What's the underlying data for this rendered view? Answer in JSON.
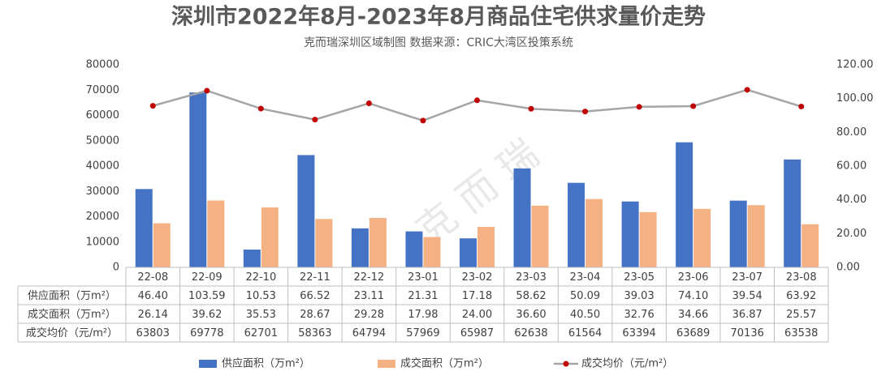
{
  "chart_data": {
    "type": "bar-line",
    "title": "深圳市2022年8月-2023年8月商品住宅供求量价走势",
    "subtitle": "克而瑞深圳区域制图        数据来源：CRIC大湾区投策系统",
    "watermark": "克 而 瑞",
    "categories": [
      "22-08",
      "22-09",
      "22-10",
      "22-11",
      "22-12",
      "23-01",
      "23-02",
      "23-03",
      "23-04",
      "23-05",
      "23-06",
      "23-07",
      "23-08"
    ],
    "ylim": [
      0,
      80000
    ],
    "yticks": [
      0,
      10000,
      20000,
      30000,
      40000,
      50000,
      60000,
      70000,
      80000
    ],
    "y2lim": [
      0,
      120
    ],
    "y2ticks": [
      {
        "value": 0,
        "label": "0.00"
      },
      {
        "value": 20,
        "label": "20.00"
      },
      {
        "value": 40,
        "label": "40.00"
      },
      {
        "value": 60,
        "label": "60.00"
      },
      {
        "value": 80,
        "label": "80.00"
      },
      {
        "value": 100,
        "label": "100.00"
      },
      {
        "value": 120,
        "label": "120.00"
      }
    ],
    "grid": false,
    "series": [
      {
        "name": "供应面积（万m²）",
        "type": "bar",
        "axis": "y2",
        "color": "#4472c4",
        "values": [
          46.4,
          103.59,
          10.53,
          66.52,
          23.11,
          21.31,
          17.18,
          58.62,
          50.09,
          39.03,
          74.1,
          39.54,
          63.92
        ],
        "value_labels": [
          "46.40",
          "103.59",
          "10.53",
          "66.52",
          "23.11",
          "21.31",
          "17.18",
          "58.62",
          "50.09",
          "39.03",
          "74.10",
          "39.54",
          "63.92"
        ]
      },
      {
        "name": "成交面积（万m²）",
        "type": "bar",
        "axis": "y2",
        "color": "#f4b183",
        "values": [
          26.14,
          39.62,
          35.53,
          28.67,
          29.28,
          17.98,
          24.0,
          36.6,
          40.5,
          32.76,
          34.66,
          36.87,
          25.57
        ],
        "value_labels": [
          "26.14",
          "39.62",
          "35.53",
          "28.67",
          "29.28",
          "17.98",
          "24.00",
          "36.60",
          "40.50",
          "32.76",
          "34.66",
          "36.87",
          "25.57"
        ]
      },
      {
        "name": "成交均价（元/m²）",
        "type": "line",
        "axis": "y",
        "color": "#a5a5a5",
        "marker_color": "#c00000",
        "values": [
          63803,
          69778,
          62701,
          58363,
          64794,
          57969,
          65987,
          62638,
          61564,
          63394,
          63689,
          70136,
          63538
        ]
      }
    ]
  }
}
